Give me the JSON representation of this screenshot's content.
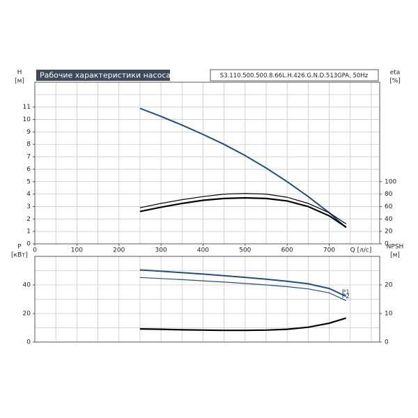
{
  "chart_data": [
    {
      "type": "line",
      "title": "Рабочие характеристики насоса",
      "model": "S3.110.500.500.8.66L.H.426.G.N.D.513GPA, 50Hz",
      "xlabel": "Q [л/с]",
      "ylabel": "H",
      "yunit": "[м]",
      "y2label": "eta",
      "y2unit": "[%]",
      "x": [
        250,
        300,
        350,
        400,
        450,
        500,
        550,
        600,
        650,
        700,
        740
      ],
      "series": [
        {
          "color": "#1f4e82",
          "width": 2,
          "values": [
            10.9,
            10.25,
            9.55,
            8.8,
            8.0,
            7.1,
            6.1,
            5.0,
            3.8,
            2.5,
            1.3
          ]
        },
        {
          "color": "#000000",
          "width": 1.2,
          "axis": "y2",
          "values": [
            58,
            65,
            71,
            76,
            80,
            81,
            80,
            75,
            65,
            50,
            32
          ]
        },
        {
          "color": "#000000",
          "width": 2.2,
          "axis": "y2",
          "values": [
            52,
            59,
            65,
            70,
            73,
            74,
            73,
            69,
            60,
            45,
            27
          ]
        }
      ],
      "xlim": [
        0,
        820
      ],
      "xticks": [
        0,
        100,
        200,
        300,
        400,
        500,
        600,
        700
      ],
      "xgrid": [
        50,
        100,
        150,
        200,
        250,
        300,
        350,
        400,
        450,
        500,
        550,
        600,
        650,
        700,
        750,
        800
      ],
      "ylim": [
        0,
        13
      ],
      "yticks": [
        0,
        1,
        2,
        3,
        4,
        5,
        6,
        7,
        8,
        9,
        10,
        11
      ],
      "ygrid": [
        1,
        2,
        3,
        4,
        5,
        6,
        7,
        8,
        9,
        10,
        11,
        12
      ],
      "y2lim": [
        0,
        260
      ],
      "y2ticks": [
        0,
        20,
        40,
        60,
        80,
        100
      ],
      "grid": true
    },
    {
      "type": "line",
      "ylabel": "P",
      "yunit": "[кВт]",
      "y2label": "NPSH",
      "y2unit": "[м]",
      "x": [
        250,
        300,
        350,
        400,
        450,
        500,
        550,
        600,
        650,
        700,
        740
      ],
      "series": [
        {
          "name": "P1",
          "color": "#1f4e82",
          "width": 2,
          "values": [
            50.5,
            49.6,
            48.6,
            47.6,
            46.5,
            45.3,
            44,
            42.6,
            40.8,
            37.5,
            32
          ]
        },
        {
          "name": "P2",
          "color": "#1f4e82",
          "width": 1.2,
          "values": [
            45.2,
            44.5,
            43.7,
            42.9,
            42,
            41,
            40,
            38.8,
            37.2,
            34.5,
            29
          ]
        },
        {
          "color": "#000000",
          "width": 2.2,
          "axis": "y2",
          "values": [
            4.6,
            4.5,
            4.3,
            4.2,
            4.1,
            4.1,
            4.2,
            4.5,
            5.2,
            6.6,
            8.4
          ]
        }
      ],
      "xlim": [
        0,
        820
      ],
      "xgrid": [
        50,
        100,
        150,
        200,
        250,
        300,
        350,
        400,
        450,
        500,
        550,
        600,
        650,
        700,
        750,
        800
      ],
      "ylim": [
        0,
        60
      ],
      "yticks": [
        0,
        20,
        40
      ],
      "ygrid": [
        10,
        20,
        30,
        40,
        50
      ],
      "y2lim": [
        0,
        30
      ],
      "y2ticks": [
        0,
        10,
        20
      ],
      "grid": true
    }
  ]
}
